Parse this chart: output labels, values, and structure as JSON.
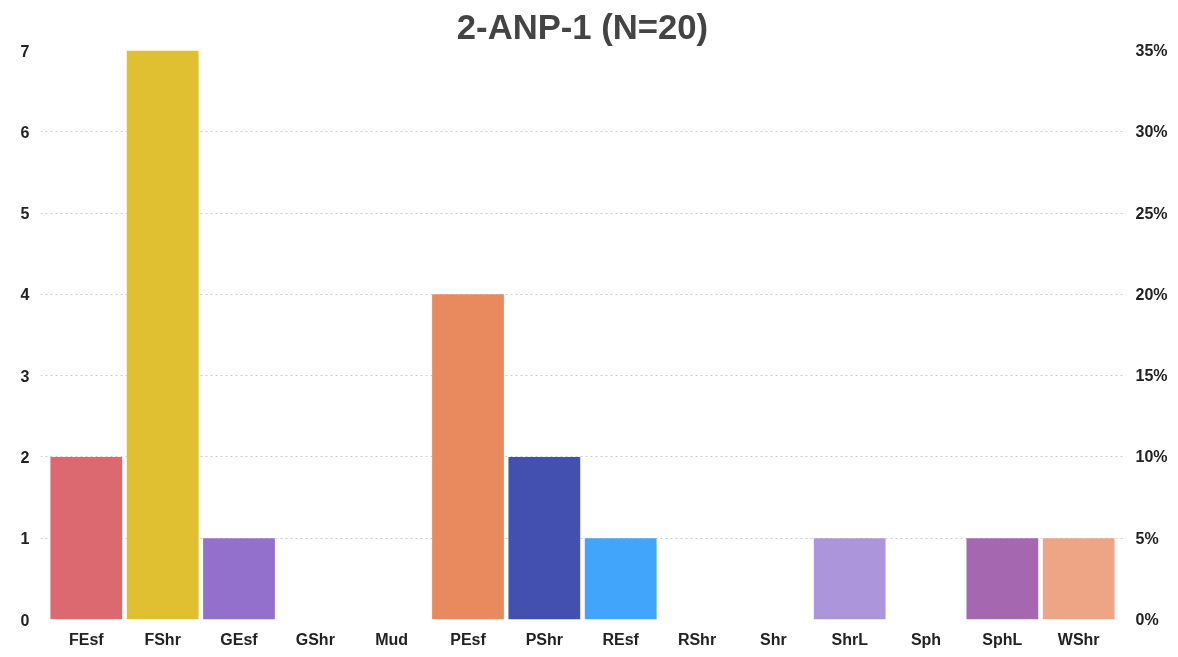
{
  "chart_data": {
    "type": "bar",
    "title": "2-ANP-1 (N=20)",
    "categories": [
      "FEsf",
      "FShr",
      "GEsf",
      "GShr",
      "Mud",
      "PEsf",
      "PShr",
      "REsf",
      "RShr",
      "Shr",
      "ShrL",
      "Sph",
      "SphL",
      "WShr"
    ],
    "values": [
      2,
      7,
      1,
      0,
      0,
      4,
      2,
      1,
      0,
      0,
      1,
      0,
      1,
      1
    ],
    "colors": [
      "#dc6870",
      "#e0c030",
      "#9370cc",
      null,
      null,
      "#e98a5e",
      "#4350b0",
      "#42a5fc",
      null,
      null,
      "#ad95dc",
      null,
      "#a567b0",
      "#eea585"
    ],
    "ylim": [
      0,
      7
    ],
    "yticks": [
      0,
      1,
      2,
      3,
      4,
      5,
      6,
      7
    ],
    "y2lim": [
      0,
      35
    ],
    "y2ticks": [
      {
        "value": 0,
        "label": "0%"
      },
      {
        "value": 5,
        "label": "5%"
      },
      {
        "value": 10,
        "label": "10%"
      },
      {
        "value": 15,
        "label": "15%"
      },
      {
        "value": 20,
        "label": "20%"
      },
      {
        "value": 25,
        "label": "25%"
      },
      {
        "value": 30,
        "label": "30%"
      },
      {
        "value": 35,
        "label": "35%"
      }
    ],
    "grid": "y"
  }
}
